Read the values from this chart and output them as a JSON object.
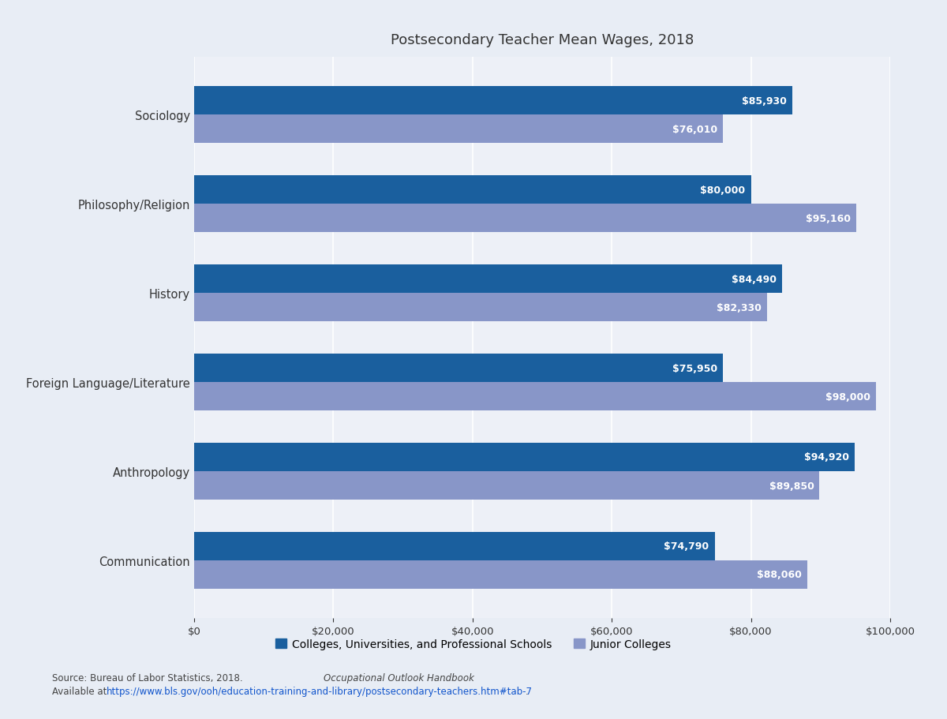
{
  "title": "Postsecondary Teacher Mean Wages, 2018",
  "categories": [
    "Communication",
    "Anthropology",
    "Foreign Language/Literature",
    "History",
    "Philosophy/Religion",
    "Sociology"
  ],
  "colleges_values": [
    74790,
    94920,
    75950,
    84490,
    80000,
    85930
  ],
  "junior_values": [
    88060,
    89850,
    98000,
    82330,
    95160,
    76010
  ],
  "colleges_color": "#1a5f9e",
  "junior_color": "#8896c8",
  "fig_bg_color": "#e8edf5",
  "plot_bg_color": "#edf0f7",
  "xlim": [
    0,
    100000
  ],
  "xticks": [
    0,
    20000,
    40000,
    60000,
    80000,
    100000
  ],
  "legend_label_colleges": "Colleges, Universities, and Professional Schools",
  "legend_label_junior": "Junior Colleges",
  "source_line1_plain": "Source: Bureau of Labor Statistics, 2018. ",
  "source_italic": "Occupational Outlook Handbook",
  "source_line1_end": ".",
  "source_line2_plain": "Available at ",
  "source_line2_url": "https://www.bls.gov/ooh/education-training-and-library/postsecondary-teachers.htm#tab-7",
  "source_line2_end": ".",
  "bar_height": 0.32,
  "title_fontsize": 13,
  "label_fontsize": 10.5,
  "tick_fontsize": 9.5,
  "annotation_fontsize": 9,
  "legend_fontsize": 10,
  "source_fontsize": 8.5
}
